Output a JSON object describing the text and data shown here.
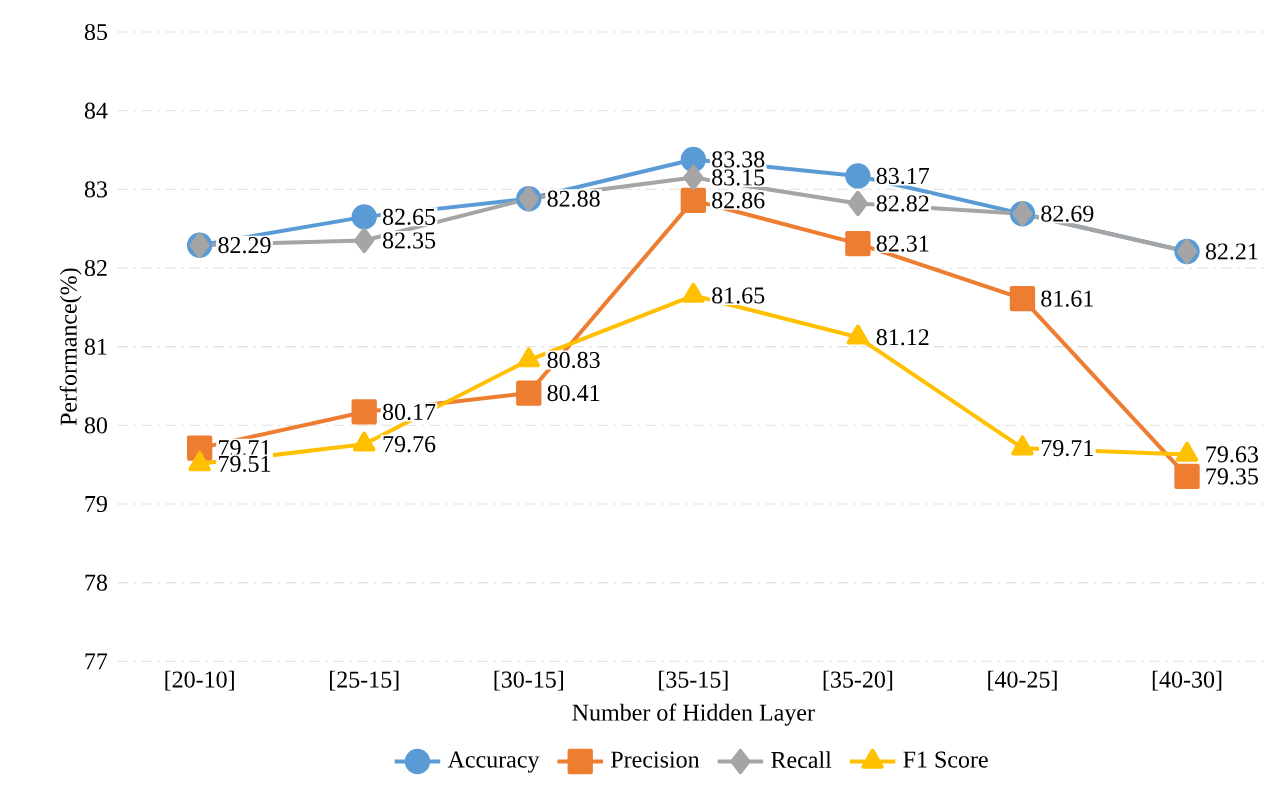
{
  "chart_data": {
    "type": "line",
    "xlabel": "Number of Hidden Layer",
    "ylabel": "Performance(%)",
    "categories": [
      "[20-10]",
      "[25-15]",
      "[30-15]",
      "[35-15]",
      "[35-20]",
      "[40-25]",
      "[40-30]"
    ],
    "ylim": [
      77,
      85
    ],
    "yticks": [
      77,
      78,
      79,
      80,
      81,
      82,
      83,
      84,
      85
    ],
    "grid": "y",
    "legend": "bottom",
    "line_style": "solid",
    "series": [
      {
        "name": "Accuracy",
        "color": "#5b9bd5",
        "marker": "circle",
        "values": [
          82.29,
          82.65,
          82.88,
          83.38,
          83.17,
          82.69,
          82.21
        ],
        "value_labels": [
          "82.29",
          "82.65",
          "82.88",
          "83.38",
          "83.17",
          "82.69",
          "82.21"
        ]
      },
      {
        "name": "Precision",
        "color": "#ed7d31",
        "marker": "square",
        "values": [
          79.71,
          80.17,
          80.41,
          82.86,
          82.31,
          81.61,
          79.35
        ],
        "value_labels": [
          "79.71",
          "80.17",
          "80.41",
          "82.86",
          "82.31",
          "81.61",
          "79.35"
        ]
      },
      {
        "name": "Recall",
        "color": "#a5a5a5",
        "marker": "diamond",
        "values": [
          82.29,
          82.35,
          82.88,
          83.15,
          82.82,
          82.69,
          82.21
        ],
        "value_labels": [
          null,
          "82.35",
          null,
          "83.15",
          "82.82",
          null,
          null
        ]
      },
      {
        "name": "F1 Score",
        "color": "#ffc000",
        "marker": "triangle",
        "values": [
          79.51,
          79.76,
          80.83,
          81.65,
          81.12,
          79.71,
          79.63
        ],
        "value_labels": [
          "79.51",
          "79.76",
          "80.83",
          "81.65",
          "81.12",
          "79.71",
          "79.63"
        ]
      }
    ]
  }
}
